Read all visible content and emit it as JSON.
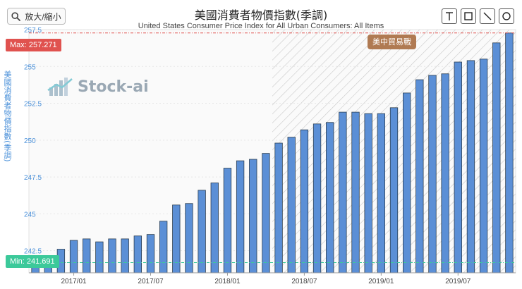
{
  "toolbar": {
    "zoom_label": "放大/縮小",
    "tools": [
      "vertical-line-tool",
      "rectangle-tool",
      "diagonal-line-tool",
      "circle-tool"
    ]
  },
  "logo": {
    "text": "Stock-ai"
  },
  "badges": {
    "max": "Max: 257.271",
    "min": "Min: 241.691"
  },
  "event": {
    "label": "美中貿易戰",
    "start_index": 19
  },
  "colors": {
    "bar": "#5b8fd6",
    "bar_stroke": "#2c3e50",
    "max_line": "#e0524f",
    "min_line": "#3cc99a",
    "axis_text": "#4a90d9",
    "grid": "#e6e6e6",
    "hatch": "#c8c8c8"
  },
  "chart_data": {
    "type": "bar",
    "title": "美國消費者物價指數(季調)",
    "subtitle": "United States Consumer Price Index for All Urban Consumers: All Items",
    "ylabel": "美國消費者物價指數(季調)",
    "xlabel": "",
    "ylim": [
      241,
      257.5
    ],
    "yticks": [
      242.5,
      245,
      247.5,
      250,
      252.5,
      255,
      257.5
    ],
    "xticks": [
      {
        "label": "2017/01",
        "index": 3
      },
      {
        "label": "2017/07",
        "index": 9
      },
      {
        "label": "2018/01",
        "index": 15
      },
      {
        "label": "2018/07",
        "index": 21
      },
      {
        "label": "2019/01",
        "index": 27
      },
      {
        "label": "2019/07",
        "index": 33
      }
    ],
    "max": 257.271,
    "min": 241.691,
    "categories": [
      "2016/10",
      "2016/11",
      "2016/12",
      "2017/01",
      "2017/02",
      "2017/03",
      "2017/04",
      "2017/05",
      "2017/06",
      "2017/07",
      "2017/08",
      "2017/09",
      "2017/10",
      "2017/11",
      "2017/12",
      "2018/01",
      "2018/02",
      "2018/03",
      "2018/04",
      "2018/05",
      "2018/06",
      "2018/07",
      "2018/08",
      "2018/09",
      "2018/10",
      "2018/11",
      "2018/12",
      "2019/01",
      "2019/02",
      "2019/03",
      "2019/04",
      "2019/05",
      "2019/06",
      "2019/07",
      "2019/08",
      "2019/09",
      "2019/10",
      "2019/11"
    ],
    "values": [
      241.691,
      242.0,
      242.6,
      243.2,
      243.3,
      243.1,
      243.3,
      243.3,
      243.5,
      243.6,
      244.5,
      245.6,
      245.7,
      246.6,
      247.1,
      248.1,
      248.6,
      248.7,
      249.1,
      249.8,
      250.2,
      250.7,
      251.1,
      251.2,
      251.9,
      251.9,
      251.8,
      251.8,
      252.2,
      253.2,
      254.1,
      254.4,
      254.5,
      255.3,
      255.4,
      255.5,
      256.6,
      257.271
    ]
  }
}
